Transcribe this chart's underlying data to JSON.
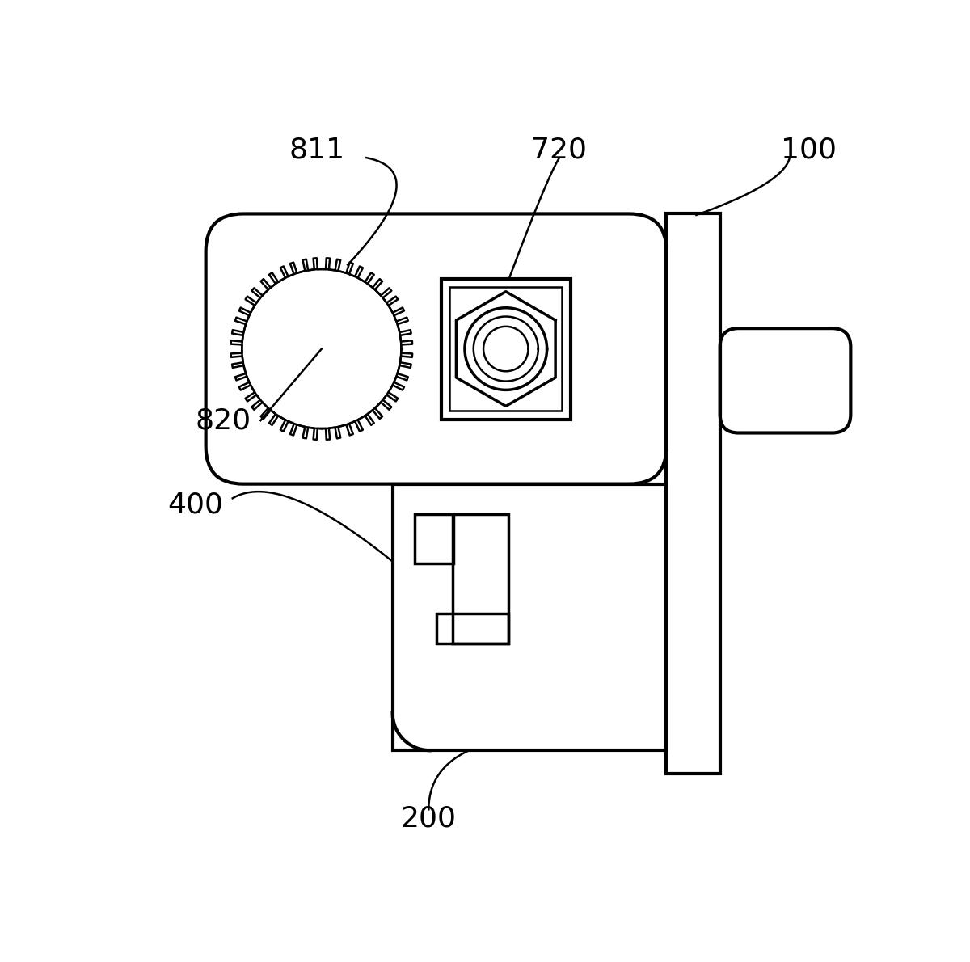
{
  "bg_color": "#ffffff",
  "line_color": "#000000",
  "lw": 2.5,
  "lw_thin": 1.8,
  "lw_thick": 3.0,
  "label_811": "811",
  "label_720": "720",
  "label_100": "100",
  "label_820": "820",
  "label_400": "400",
  "label_200": "200",
  "font_size": 26
}
